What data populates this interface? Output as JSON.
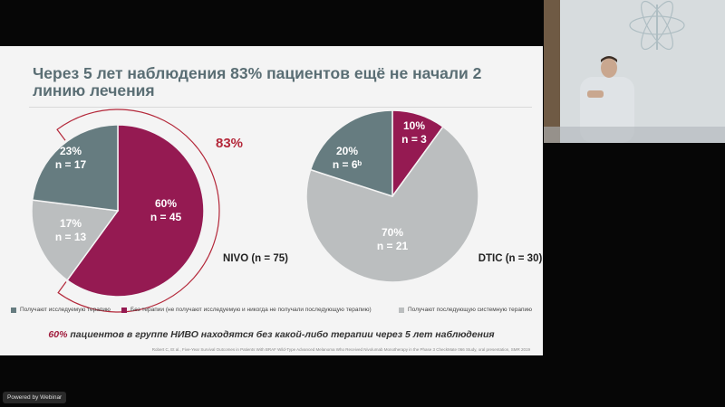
{
  "slide": {
    "title": "Через 5 лет наблюдения 83% пациентов ещё не начали 2 линию лечения",
    "highlight_label": "83%",
    "colors": {
      "gray": "#667c80",
      "maroon": "#951a52",
      "light": "#bbbebf",
      "red": "#b4283a"
    }
  },
  "chart_data": [
    {
      "type": "pie",
      "label": "NIVO (n = 75)",
      "slices": [
        {
          "category": "Без терапии",
          "percent_label": "60%",
          "n_label": "n = 45",
          "value": 60,
          "color": "#951a52"
        },
        {
          "category": "Получают последующую системную терапию",
          "percent_label": "17%",
          "n_label": "n = 13",
          "value": 17,
          "color": "#bbbebf"
        },
        {
          "category": "Получают исследуемую терапию",
          "percent_label": "23%",
          "n_label": "n = 17",
          "value": 23,
          "color": "#667c80"
        }
      ]
    },
    {
      "type": "pie",
      "label": "DTIC (n = 30)",
      "slices": [
        {
          "category": "Без терапии",
          "percent_label": "10%",
          "n_label": "n = 3",
          "value": 10,
          "color": "#951a52"
        },
        {
          "category": "Получают последующую системную терапию",
          "percent_label": "70%",
          "n_label": "n = 21",
          "value": 70,
          "color": "#bbbebf"
        },
        {
          "category": "Получают исследуемую терапию",
          "percent_label": "20%",
          "n_label": "n = 6ᵇ",
          "value": 20,
          "color": "#667c80"
        }
      ]
    }
  ],
  "legend": [
    {
      "label": "Получают исследуемую терапию",
      "color": "#667c80"
    },
    {
      "label": "Без терапии (не получают исследуемую и никогда не получали последующую терапию)",
      "color": "#951a52"
    },
    {
      "label": "Получают последующую системную терапию",
      "color": "#bbbebf"
    }
  ],
  "footnote": {
    "highlight": "60%",
    "text": " пациентов в группе НИВО находятся без какой-либо терапии через 5 лет наблюдения"
  },
  "reference": "Robert C, Et al., Five-Year Survival Outcomes in Patients With BRAF Wild-Type Advanced Melanoma Who Received Nivolumab Monotherapy in the Phase 3 CheckMate 066 Study, oral presentation, SMR 2019",
  "webinar_badge": "Powered by Webinar"
}
